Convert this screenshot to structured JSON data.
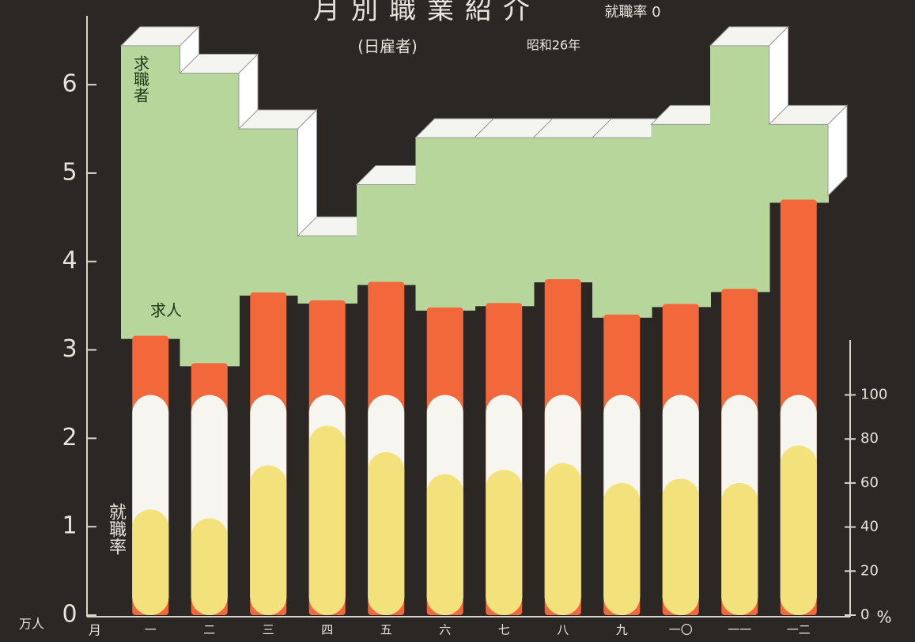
{
  "chart_data": {
    "type": "bar",
    "title": "月別職業紹介",
    "subtitle": "(日雇者)",
    "date_note": "昭和26年",
    "top_note": "就職率 0",
    "y_unit": "万人",
    "x_label": "月",
    "y2_unit": "%",
    "categories": [
      "一",
      "二",
      "三",
      "四",
      "五",
      "六",
      "七",
      "八",
      "九",
      "一〇",
      "一一",
      "一二"
    ],
    "series": [
      {
        "name": "求職者",
        "color": "#b6d69b",
        "values": [
          6.44,
          6.13,
          5.5,
          4.29,
          4.87,
          5.4,
          5.4,
          5.4,
          5.4,
          5.55,
          6.44,
          5.55
        ]
      },
      {
        "name": "求人",
        "color": "#f2683a",
        "values": [
          3.16,
          2.85,
          3.65,
          3.56,
          3.77,
          3.48,
          3.53,
          3.8,
          3.4,
          3.52,
          3.69,
          4.7
        ]
      },
      {
        "name": "就職率",
        "color": "#f3e27c",
        "axis": "y2",
        "values": [
          48,
          44,
          68,
          86,
          74,
          64,
          66,
          69,
          60,
          62,
          60,
          77
        ]
      }
    ],
    "ylim": [
      0,
      6.6
    ],
    "yticks": [
      0,
      1,
      2,
      3,
      4,
      5,
      6
    ],
    "y2lim": [
      0,
      265
    ],
    "y2ticks": [
      0,
      20,
      40,
      60,
      80,
      100
    ]
  }
}
